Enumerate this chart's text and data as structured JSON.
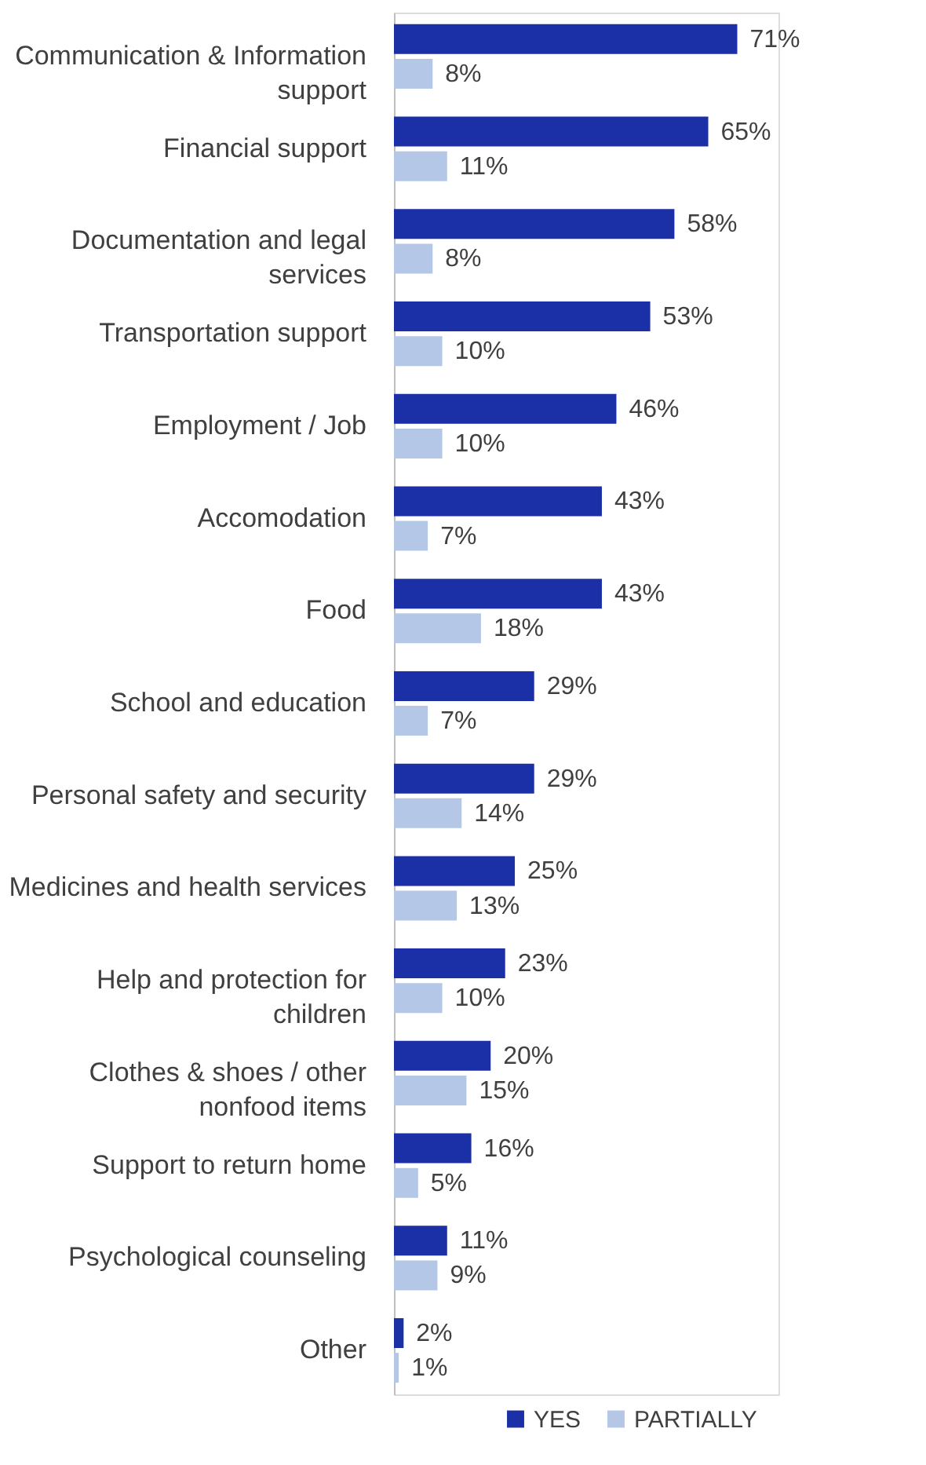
{
  "chart_data": {
    "type": "bar",
    "orientation": "horizontal",
    "legend": "bottom right",
    "grid": false,
    "tick_labels": "y",
    "categories": [
      "Communication & Information\nsupport",
      "Financial support",
      "Documentation and legal\nservices",
      "Transportation support",
      "Employment / Job",
      "Accomodation",
      "Food",
      "School and education",
      "Personal safety and security",
      "Medicines and health services",
      "Help and protection for\nchildren",
      "Clothes & shoes / other\nnonfood items",
      "Support to return home",
      "Psychological counseling",
      "Other"
    ],
    "series": [
      {
        "name": "YES",
        "color": "#1b2fa6",
        "values": [
          71,
          65,
          58,
          53,
          46,
          43,
          43,
          29,
          29,
          25,
          23,
          20,
          16,
          11,
          2
        ],
        "value_labels": [
          "71%",
          "65%",
          "58%",
          "53%",
          "46%",
          "43%",
          "43%",
          "29%",
          "29%",
          "25%",
          "23%",
          "20%",
          "16%",
          "11%",
          "2%"
        ]
      },
      {
        "name": "PARTIALLY",
        "color": "#b4c7e7",
        "values": [
          8,
          11,
          8,
          10,
          10,
          7,
          18,
          7,
          14,
          13,
          10,
          15,
          5,
          9,
          1
        ],
        "value_labels": [
          "8%",
          "11%",
          "8%",
          "10%",
          "10%",
          "7%",
          "18%",
          "7%",
          "14%",
          "13%",
          "10%",
          "15%",
          "5%",
          "9%",
          "1%"
        ]
      }
    ]
  }
}
